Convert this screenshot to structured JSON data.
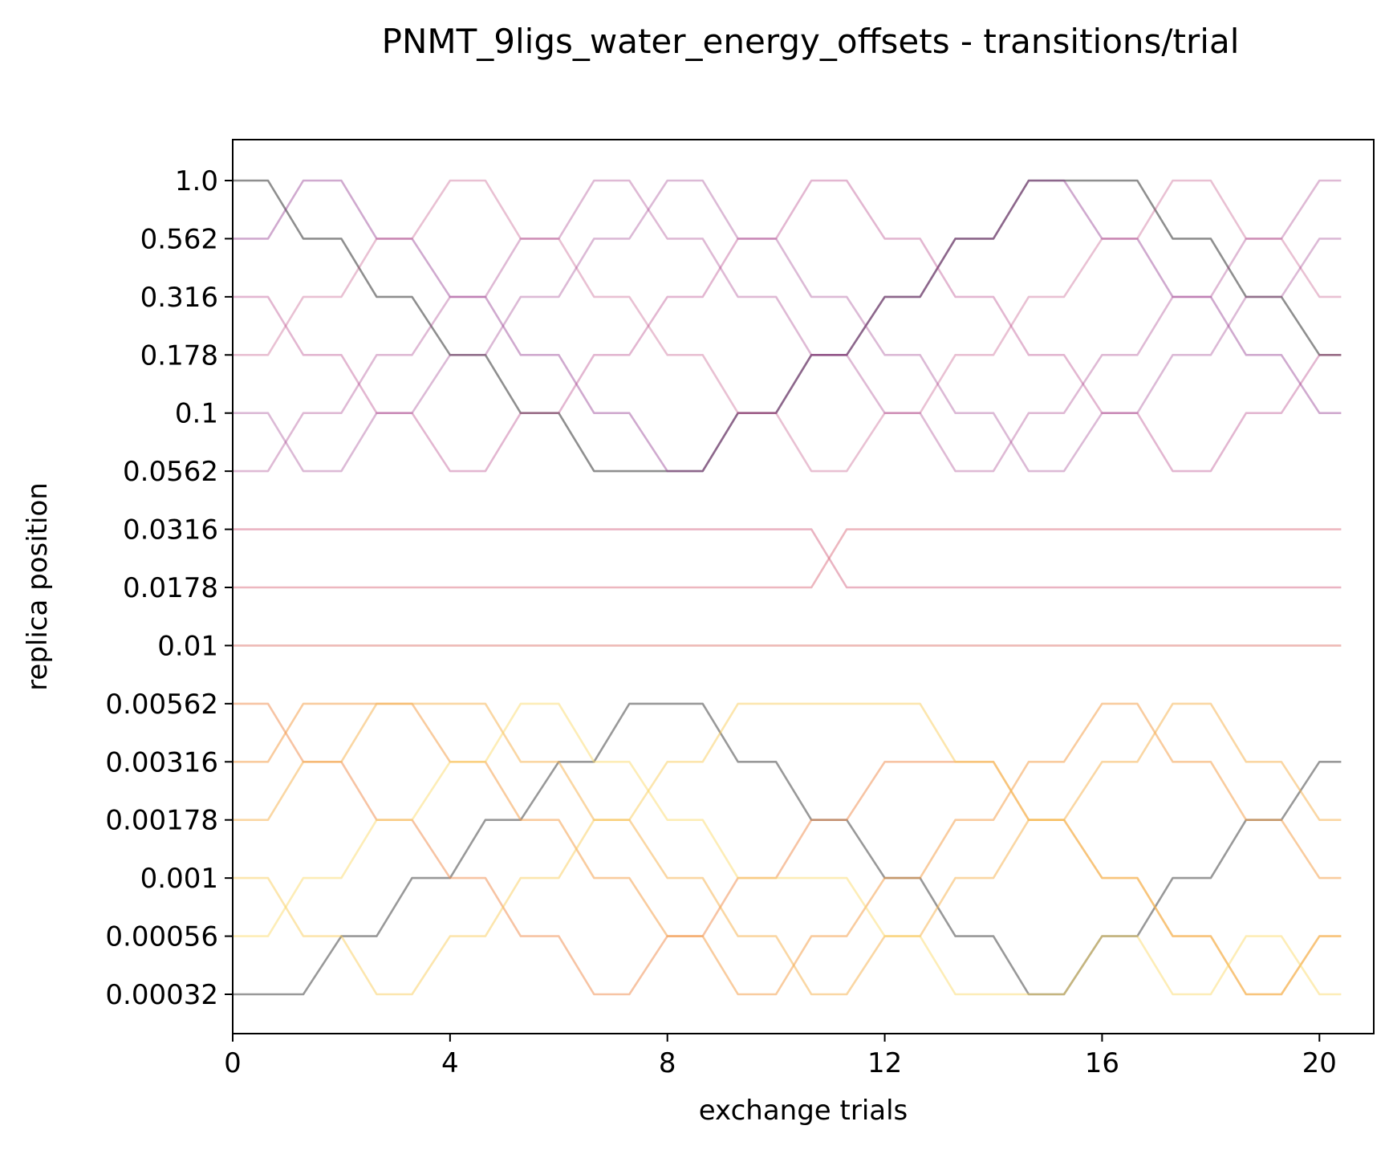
{
  "chart_data": {
    "type": "line",
    "title": "PNMT_9ligs_water_energy_offsets - transitions/trial",
    "xlabel": "exchange trials",
    "ylabel": "replica position",
    "xlim": [
      0,
      21
    ],
    "xticks": [
      "0",
      "4",
      "8",
      "12",
      "16",
      "20"
    ],
    "y_categories": [
      "0.00032",
      "0.00056",
      "0.001",
      "0.00178",
      "0.00316",
      "0.00562",
      "0.01",
      "0.0178",
      "0.0316",
      "0.0562",
      "0.1",
      "0.178",
      "0.316",
      "0.562",
      "1.0"
    ],
    "trials": [
      0,
      0.65,
      1.3,
      2.0,
      2.65,
      3.3,
      4.0,
      4.65,
      5.3,
      6.0,
      6.65,
      7.3,
      8.0,
      8.65,
      9.3,
      10.0,
      10.65,
      11.3,
      12.0,
      12.65,
      13.3,
      14.0,
      14.65,
      15.3,
      16.0,
      16.65,
      17.3,
      18.0,
      18.65,
      19.3,
      20.0,
      20.4
    ],
    "grid": false,
    "series": [
      {
        "color": "#6a6a6a",
        "opacity": 0.75,
        "positions": [
          14,
          14,
          13,
          13,
          12,
          12,
          11,
          11,
          10,
          10,
          9,
          9,
          9,
          9,
          10,
          10,
          11,
          11,
          12,
          12,
          13,
          13,
          14,
          14,
          14,
          14,
          13,
          13,
          12,
          12,
          11,
          11
        ]
      },
      {
        "color": "#8a2a88",
        "opacity": 0.4,
        "positions": [
          13,
          13,
          14,
          14,
          13,
          13,
          12,
          12,
          11,
          11,
          10,
          10,
          9,
          9,
          10,
          10,
          11,
          11,
          12,
          12,
          13,
          13,
          14,
          14,
          13,
          13,
          12,
          12,
          11,
          11,
          10,
          10
        ]
      },
      {
        "color": "#b0307a",
        "opacity": 0.35,
        "positions": [
          12,
          12,
          11,
          11,
          10,
          10,
          9,
          9,
          10,
          10,
          11,
          11,
          12,
          12,
          13,
          13,
          14,
          14,
          13,
          13,
          12,
          12,
          11,
          11,
          10,
          10,
          9,
          9,
          10,
          10,
          11,
          11
        ]
      },
      {
        "color": "#c04c82",
        "opacity": 0.35,
        "positions": [
          11,
          11,
          12,
          12,
          13,
          13,
          14,
          14,
          13,
          13,
          12,
          12,
          11,
          11,
          10,
          10,
          9,
          9,
          10,
          10,
          11,
          11,
          12,
          12,
          13,
          13,
          14,
          14,
          13,
          13,
          12,
          12
        ]
      },
      {
        "color": "#9a3a8a",
        "opacity": 0.35,
        "positions": [
          10,
          10,
          9,
          9,
          10,
          10,
          11,
          11,
          12,
          12,
          13,
          13,
          14,
          14,
          13,
          13,
          12,
          12,
          11,
          11,
          10,
          10,
          9,
          9,
          10,
          10,
          11,
          11,
          12,
          12,
          13,
          13
        ]
      },
      {
        "color": "#a43a86",
        "opacity": 0.35,
        "positions": [
          9,
          9,
          10,
          10,
          11,
          11,
          12,
          12,
          13,
          13,
          14,
          14,
          13,
          13,
          12,
          12,
          11,
          11,
          10,
          10,
          9,
          9,
          10,
          10,
          11,
          11,
          12,
          12,
          13,
          13,
          14,
          14
        ]
      },
      {
        "color": "#d66a86",
        "opacity": 0.5,
        "positions": [
          8,
          8,
          8,
          8,
          8,
          8,
          8,
          8,
          8,
          8,
          8,
          8,
          8,
          8,
          8,
          8,
          8,
          7,
          7,
          7,
          7,
          7,
          7,
          7,
          7,
          7,
          7,
          7,
          7,
          7,
          7,
          7
        ]
      },
      {
        "color": "#dc7080",
        "opacity": 0.5,
        "positions": [
          7,
          7,
          7,
          7,
          7,
          7,
          7,
          7,
          7,
          7,
          7,
          7,
          7,
          7,
          7,
          7,
          7,
          8,
          8,
          8,
          8,
          8,
          8,
          8,
          8,
          8,
          8,
          8,
          8,
          8,
          8,
          8
        ]
      },
      {
        "color": "#e0827a",
        "opacity": 0.55,
        "positions": [
          6,
          6,
          6,
          6,
          6,
          6,
          6,
          6,
          6,
          6,
          6,
          6,
          6,
          6,
          6,
          6,
          6,
          6,
          6,
          6,
          6,
          6,
          6,
          6,
          6,
          6,
          6,
          6,
          6,
          6,
          6,
          6
        ]
      },
      {
        "color": "#555555",
        "opacity": 0.6,
        "positions": [
          0,
          0,
          0,
          1,
          1,
          2,
          2,
          3,
          3,
          4,
          4,
          5,
          5,
          5,
          4,
          4,
          3,
          3,
          2,
          2,
          1,
          1,
          0,
          0,
          1,
          1,
          2,
          2,
          3,
          3,
          4,
          4
        ]
      },
      {
        "color": "#f08a4a",
        "opacity": 0.5,
        "positions": [
          5,
          5,
          4,
          4,
          3,
          3,
          2,
          2,
          1,
          1,
          0,
          0,
          1,
          1,
          2,
          2,
          3,
          3,
          4,
          4,
          4,
          4,
          3,
          3,
          2,
          2,
          1,
          1,
          0,
          0,
          1,
          1
        ]
      },
      {
        "color": "#f49a40",
        "opacity": 0.5,
        "positions": [
          4,
          4,
          5,
          5,
          5,
          5,
          4,
          4,
          3,
          3,
          2,
          2,
          1,
          1,
          0,
          0,
          1,
          1,
          2,
          2,
          3,
          3,
          4,
          4,
          5,
          5,
          4,
          4,
          3,
          3,
          2,
          2
        ]
      },
      {
        "color": "#f6b04a",
        "opacity": 0.5,
        "positions": [
          3,
          3,
          4,
          4,
          5,
          5,
          5,
          5,
          4,
          4,
          3,
          3,
          2,
          2,
          1,
          1,
          0,
          0,
          1,
          1,
          2,
          2,
          3,
          3,
          4,
          4,
          5,
          5,
          4,
          4,
          3,
          3
        ]
      },
      {
        "color": "#f9c84c",
        "opacity": 0.45,
        "positions": [
          2,
          2,
          1,
          1,
          0,
          0,
          1,
          1,
          2,
          2,
          3,
          3,
          4,
          4,
          5,
          5,
          5,
          5,
          5,
          5,
          4,
          4,
          3,
          3,
          2,
          2,
          1,
          1,
          0,
          0,
          1,
          1
        ]
      },
      {
        "color": "#fbd860",
        "opacity": 0.45,
        "positions": [
          1,
          1,
          2,
          2,
          3,
          3,
          4,
          4,
          5,
          5,
          4,
          4,
          3,
          3,
          2,
          2,
          2,
          2,
          1,
          1,
          0,
          0,
          0,
          0,
          1,
          1,
          0,
          0,
          1,
          1,
          0,
          0
        ]
      }
    ]
  }
}
